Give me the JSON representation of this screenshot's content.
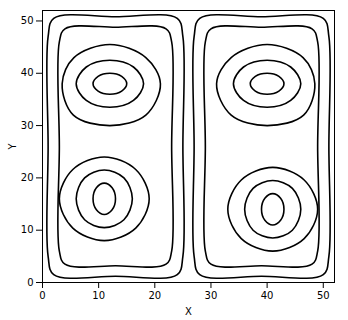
{
  "chart_data": {
    "type": "line",
    "x_label": "X",
    "y_label": "Y",
    "xlim": [
      0,
      52
    ],
    "ylim": [
      0,
      52
    ],
    "xticks": [
      0,
      10,
      20,
      30,
      40,
      50
    ],
    "yticks": [
      0,
      10,
      20,
      30,
      40,
      50
    ],
    "grid": false,
    "series": [
      {
        "color": "#000000",
        "x": [
          15,
          14.1,
          12,
          9.9,
          9,
          9.9,
          12,
          14.1
        ],
        "y": [
          38,
          39.4,
          40,
          39.4,
          38,
          36.6,
          36,
          36.6
        ]
      },
      {
        "color": "#000000",
        "x": [
          18,
          16.2,
          12,
          7.8,
          6,
          7.8,
          12,
          16.2
        ],
        "y": [
          38,
          41.2,
          42.5,
          41.2,
          38,
          34.8,
          33.5,
          34.8
        ]
      },
      {
        "color": "#000000",
        "x": [
          21,
          18.4,
          12,
          5.6,
          3.5,
          5.5,
          12,
          18.4
        ],
        "y": [
          38,
          43,
          45.5,
          43,
          38,
          32,
          30,
          32
        ]
      },
      {
        "color": "#000000",
        "x": [
          13,
          12.4,
          11,
          9.6,
          9,
          9.6,
          11,
          12.4
        ],
        "y": [
          16,
          18.1,
          19,
          18.1,
          16,
          13.9,
          13,
          13.9
        ]
      },
      {
        "color": "#000000",
        "x": [
          16,
          14.5,
          11,
          7.5,
          6,
          7.5,
          11,
          14.5
        ],
        "y": [
          16,
          20,
          21.5,
          20,
          16,
          12,
          10.5,
          12
        ]
      },
      {
        "color": "#000000",
        "x": [
          19,
          16.6,
          11,
          5.4,
          3,
          5.4,
          11,
          16.6
        ],
        "y": [
          16,
          21.6,
          24,
          21.6,
          16,
          10.4,
          8,
          10.4
        ]
      },
      {
        "color": "#000000",
        "x": [
          2,
          13,
          24,
          25,
          25,
          25,
          24,
          13,
          2,
          1,
          1,
          1
        ],
        "y": [
          1.5,
          1.2,
          1.5,
          5,
          26,
          47,
          50.5,
          50.8,
          50.5,
          47,
          26,
          5
        ]
      },
      {
        "color": "#000000",
        "x": [
          4,
          13,
          22,
          23,
          23,
          23,
          22,
          13,
          4,
          3,
          3,
          3
        ],
        "y": [
          3.5,
          3.2,
          3.5,
          6,
          26,
          46,
          48.5,
          48.8,
          48.5,
          46,
          26,
          6
        ]
      },
      {
        "color": "#000000",
        "x": [
          37,
          37.9,
          40,
          42.1,
          43,
          42.1,
          40,
          37.9
        ],
        "y": [
          38,
          39.4,
          40,
          39.4,
          38,
          36.6,
          36,
          36.6
        ]
      },
      {
        "color": "#000000",
        "x": [
          34,
          35.8,
          40,
          44.2,
          46,
          44.2,
          40,
          35.8
        ],
        "y": [
          38,
          41.2,
          42.5,
          41.2,
          38,
          34.8,
          33.5,
          34.8
        ]
      },
      {
        "color": "#000000",
        "x": [
          31,
          33.6,
          40,
          46.4,
          48.5,
          46.5,
          40,
          33.6
        ],
        "y": [
          38,
          43,
          45.5,
          43,
          38,
          32,
          30,
          32
        ]
      },
      {
        "color": "#000000",
        "x": [
          39,
          39.6,
          41,
          42.4,
          43,
          42.4,
          41,
          39.6
        ],
        "y": [
          14,
          16.1,
          17,
          16.1,
          14,
          11.9,
          11,
          11.9
        ]
      },
      {
        "color": "#000000",
        "x": [
          36,
          37.5,
          41,
          44.5,
          46,
          44.5,
          41,
          37.5
        ],
        "y": [
          14,
          18,
          19.5,
          18,
          14,
          10,
          8.5,
          10
        ]
      },
      {
        "color": "#000000",
        "x": [
          33,
          35.4,
          41,
          46.6,
          49,
          46.6,
          41,
          35.4
        ],
        "y": [
          14,
          19.6,
          22,
          19.6,
          14,
          8.4,
          6,
          8.4
        ]
      },
      {
        "color": "#000000",
        "x": [
          50,
          39,
          28,
          27,
          27,
          27,
          28,
          39,
          50,
          51,
          51,
          51
        ],
        "y": [
          1.5,
          1.2,
          1.5,
          5,
          26,
          47,
          50.5,
          50.8,
          50.5,
          47,
          26,
          5
        ]
      },
      {
        "color": "#000000",
        "x": [
          48,
          39,
          30,
          29,
          29,
          29,
          30,
          39,
          48,
          49,
          49,
          49
        ],
        "y": [
          3.5,
          3.2,
          3.5,
          6,
          26,
          46,
          48.5,
          48.8,
          48.5,
          46,
          26,
          6
        ]
      }
    ]
  }
}
